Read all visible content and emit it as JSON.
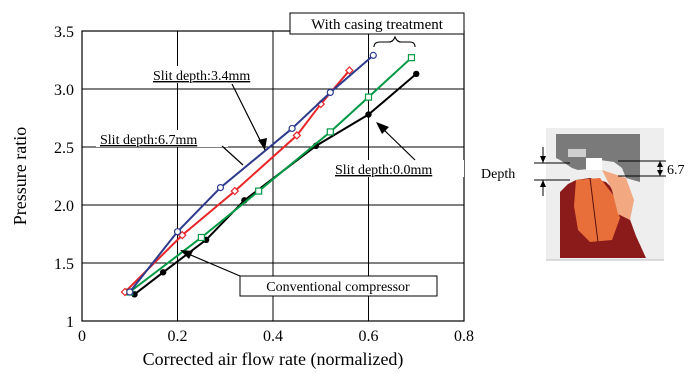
{
  "chart_data": {
    "type": "line",
    "xlabel": "Corrected air flow rate (normalized)",
    "ylabel": "Pressure ratio",
    "xlim": [
      0,
      0.8
    ],
    "ylim": [
      1,
      3.5
    ],
    "xticks": [
      0,
      0.2,
      0.4,
      0.6,
      0.8
    ],
    "xtick_labels": [
      "0",
      "0.2",
      "0.4",
      "0.6",
      "0.8"
    ],
    "yticks": [
      1,
      1.5,
      2.0,
      2.5,
      3.0,
      3.5
    ],
    "ytick_labels": [
      "1",
      "1.5",
      "2.0",
      "2.5",
      "3.0",
      "3.5"
    ],
    "grid": true,
    "series": [
      {
        "name": "Conventional compressor",
        "color": "#000000",
        "marker": "filled-circle",
        "x": [
          0.11,
          0.17,
          0.26,
          0.34,
          0.49,
          0.6,
          0.7
        ],
        "y": [
          1.23,
          1.42,
          1.7,
          2.04,
          2.51,
          2.78,
          3.13
        ]
      },
      {
        "name": "Slit depth:0.0mm",
        "color": "#009944",
        "marker": "open-square",
        "x": [
          0.1,
          0.25,
          0.37,
          0.52,
          0.6,
          0.69
        ],
        "y": [
          1.25,
          1.72,
          2.12,
          2.63,
          2.93,
          3.27
        ]
      },
      {
        "name": "Slit depth:3.4mm",
        "color": "#e8262a",
        "marker": "open-diamond",
        "x": [
          0.09,
          0.21,
          0.32,
          0.45,
          0.5,
          0.56
        ],
        "y": [
          1.25,
          1.74,
          2.12,
          2.6,
          2.87,
          3.16
        ]
      },
      {
        "name": "Slit depth:6.7mm",
        "color": "#2e3a8c",
        "marker": "open-circle",
        "x": [
          0.1,
          0.2,
          0.29,
          0.44,
          0.52,
          0.61
        ],
        "y": [
          1.25,
          1.77,
          2.15,
          2.66,
          2.97,
          3.29
        ]
      }
    ],
    "annotations": {
      "with_casing_treatment": "With casing treatment"
    }
  },
  "diagram": {
    "depth_label": "Depth",
    "dimension_label": "6.7"
  }
}
